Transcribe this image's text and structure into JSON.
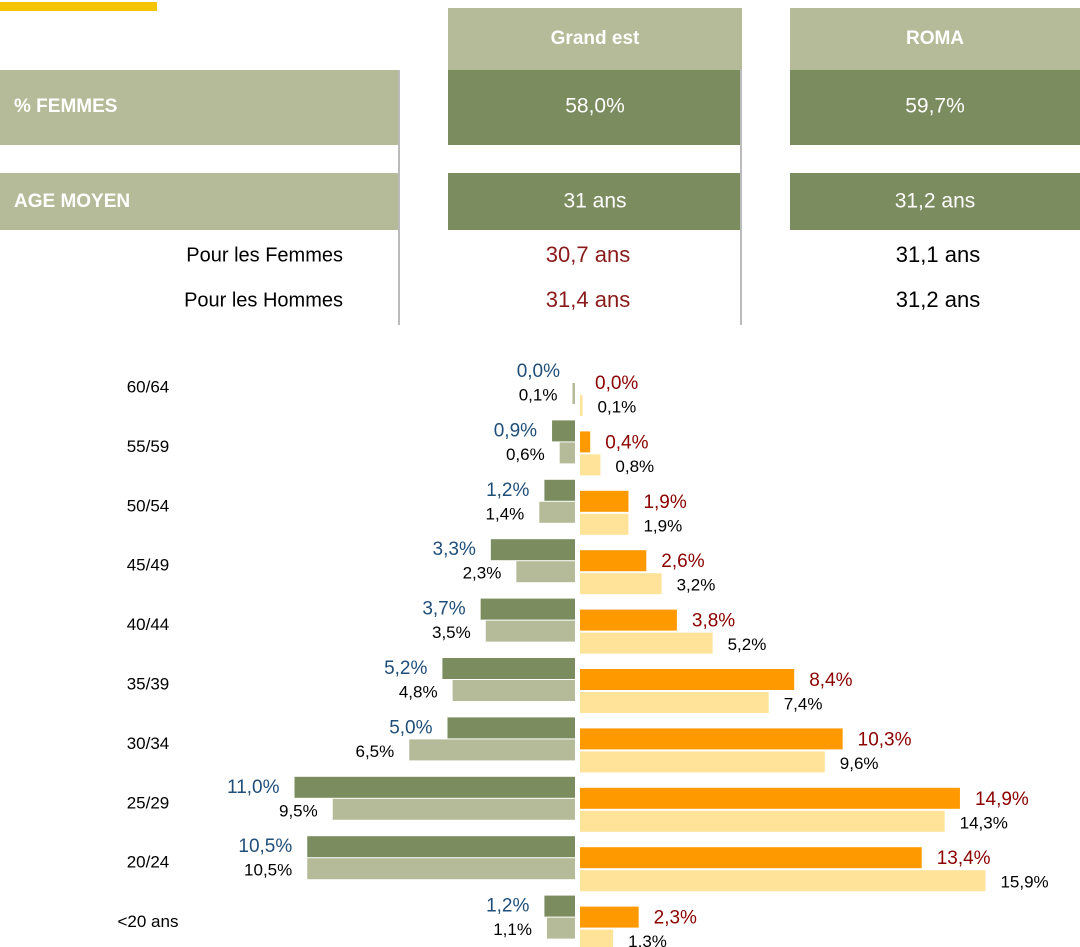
{
  "table": {
    "columns": [
      "Grand est",
      "ROMA"
    ],
    "rows": [
      {
        "label": "% FEMMES",
        "values": [
          "58,0%",
          "59,7%"
        ]
      },
      {
        "label": "AGE MOYEN",
        "values": [
          "31 ans",
          "31,2 ans"
        ]
      },
      {
        "label": "Pour les Femmes",
        "values": [
          "30,7 ans",
          "31,1 ans"
        ]
      },
      {
        "label": "Pour les Hommes",
        "values": [
          "31,4 ans",
          "31,2 ans"
        ]
      }
    ]
  },
  "chart_data": {
    "type": "pyramid",
    "categories": [
      "60/64",
      "55/59",
      "50/54",
      "45/49",
      "40/44",
      "35/39",
      "30/34",
      "25/29",
      "20/24",
      "<20 ans"
    ],
    "series": [
      {
        "side": "left",
        "color": "#7b8c5f",
        "label_color": "#1f4e79",
        "values": [
          0.0,
          0.9,
          1.2,
          3.3,
          3.7,
          5.2,
          5.0,
          11.0,
          10.5,
          1.2
        ],
        "value_labels": [
          "0,0%",
          "0,9%",
          "1,2%",
          "3,3%",
          "3,7%",
          "5,2%",
          "5,0%",
          "11,0%",
          "10,5%",
          "1,2%"
        ]
      },
      {
        "side": "left",
        "color": "#b5bb98",
        "label_color": "#000000",
        "values": [
          0.1,
          0.6,
          1.4,
          2.3,
          3.5,
          4.8,
          6.5,
          9.5,
          10.5,
          1.1
        ],
        "value_labels": [
          "0,1%",
          "0,6%",
          "1,4%",
          "2,3%",
          "3,5%",
          "4,8%",
          "6,5%",
          "9,5%",
          "10,5%",
          "1,1%"
        ]
      },
      {
        "side": "right",
        "color": "#ff9900",
        "label_color": "#8b0000",
        "values": [
          0.0,
          0.4,
          1.9,
          2.6,
          3.8,
          8.4,
          10.3,
          14.9,
          13.4,
          2.3
        ],
        "value_labels": [
          "0,0%",
          "0,4%",
          "1,9%",
          "2,6%",
          "3,8%",
          "8,4%",
          "10,3%",
          "14,9%",
          "13,4%",
          "2,3%"
        ]
      },
      {
        "side": "right",
        "color": "#ffe399",
        "label_color": "#000000",
        "values": [
          0.1,
          0.8,
          1.9,
          3.2,
          5.2,
          7.4,
          9.6,
          14.3,
          15.9,
          1.3
        ],
        "value_labels": [
          "0,1%",
          "0,8%",
          "1,9%",
          "3,2%",
          "5,2%",
          "7,4%",
          "9,6%",
          "14,3%",
          "15,9%",
          "1,3%"
        ]
      }
    ]
  }
}
